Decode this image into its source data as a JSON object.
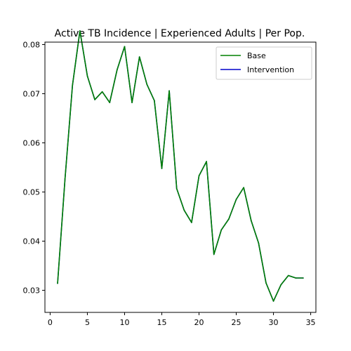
{
  "chart_data": {
    "type": "line",
    "title": "Active TB Incidence | Experienced Adults | Per Pop.",
    "xlabel": "",
    "ylabel": "",
    "xlim": [
      -0.7,
      35.7
    ],
    "ylim": [
      0.0255,
      0.0805
    ],
    "x_ticks": [
      0,
      5,
      10,
      15,
      20,
      25,
      30,
      35
    ],
    "y_ticks": [
      0.03,
      0.04,
      0.05,
      0.06,
      0.07,
      0.08
    ],
    "y_tick_labels": [
      "0.03",
      "0.04",
      "0.05",
      "0.06",
      "0.07",
      "0.08"
    ],
    "x": [
      1,
      2,
      3,
      4,
      5,
      6,
      7,
      8,
      9,
      10,
      11,
      12,
      13,
      14,
      15,
      16,
      17,
      18,
      19,
      20,
      21,
      22,
      23,
      24,
      25,
      26,
      27,
      28,
      29,
      30,
      31,
      32,
      33,
      34
    ],
    "series": [
      {
        "name": "Base",
        "color": "#008000",
        "values": [
          0.0314,
          0.0527,
          0.0717,
          0.0828,
          0.0736,
          0.0688,
          0.0704,
          0.0682,
          0.0749,
          0.0796,
          0.0682,
          0.0775,
          0.0719,
          0.0686,
          0.0548,
          0.0706,
          0.0507,
          0.0463,
          0.0438,
          0.0533,
          0.0562,
          0.0373,
          0.0423,
          0.0445,
          0.0485,
          0.0509,
          0.0442,
          0.0396,
          0.0315,
          0.0278,
          0.0311,
          0.033,
          0.0325,
          0.0325
        ]
      },
      {
        "name": "Intervention",
        "color": "#0000cc",
        "values": [
          0.0314,
          0.0527,
          0.0717,
          0.0828,
          0.0736,
          0.0688,
          0.0704,
          0.0682,
          0.0749,
          0.0796,
          0.0682,
          0.0775,
          0.0719,
          0.0686,
          0.0548,
          0.0706,
          0.0507,
          0.0463,
          0.0438,
          0.0533,
          0.0562,
          0.0373,
          0.0423,
          0.0445,
          0.0485,
          0.0509,
          0.0442,
          0.0396,
          0.0315,
          0.0278,
          0.0311,
          0.033,
          0.0325,
          0.0325
        ]
      }
    ],
    "draw_order": [
      1,
      0
    ],
    "legend_position": "top-right",
    "grid": false
  }
}
